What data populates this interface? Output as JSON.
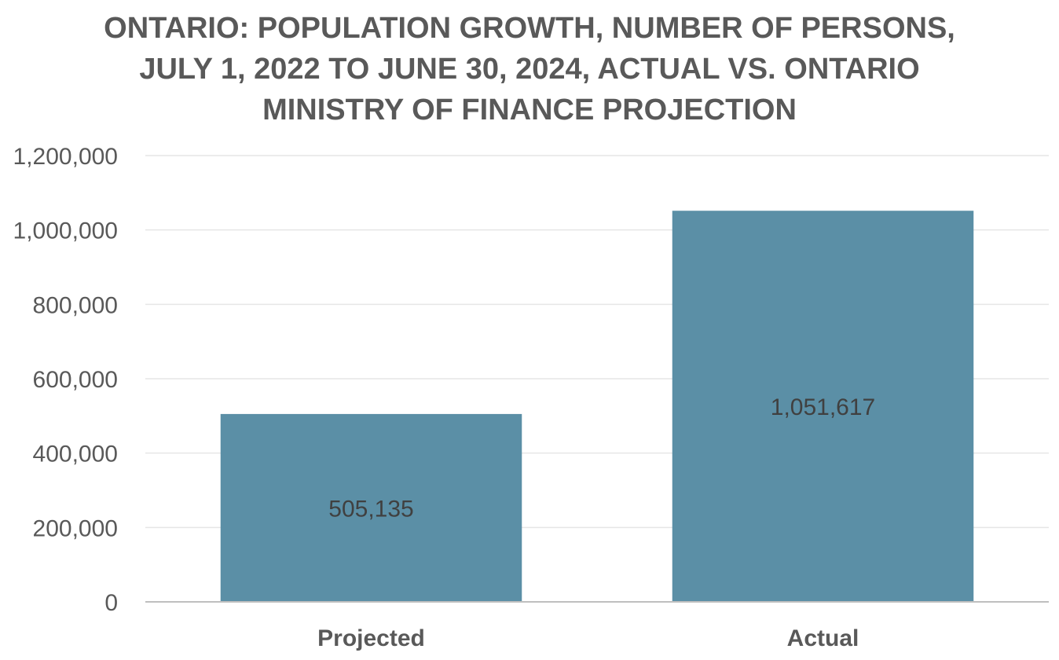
{
  "chart_data": {
    "type": "bar",
    "title_lines": [
      "ONTARIO: POPULATION GROWTH, NUMBER OF PERSONS,",
      "JULY 1, 2022 TO JUNE 30, 2024, ACTUAL VS. ONTARIO",
      "MINISTRY OF FINANCE PROJECTION"
    ],
    "categories": [
      "Projected",
      "Actual"
    ],
    "values": [
      505135,
      1051617
    ],
    "data_labels": [
      "505,135",
      "1,051,617"
    ],
    "ylim": [
      0,
      1200000
    ],
    "yticks": [
      0,
      200000,
      400000,
      600000,
      800000,
      1000000,
      1200000
    ],
    "ytick_labels": [
      "0",
      "200,000",
      "400,000",
      "600,000",
      "800,000",
      "1,000,000",
      "1,200,000"
    ],
    "grid": true,
    "xlabel": "",
    "ylabel": "",
    "bar_color": "#5b8fa6",
    "grid_color": "#e6e6e6",
    "axis_color": "#bfbfbf",
    "text_color": "#595959"
  }
}
